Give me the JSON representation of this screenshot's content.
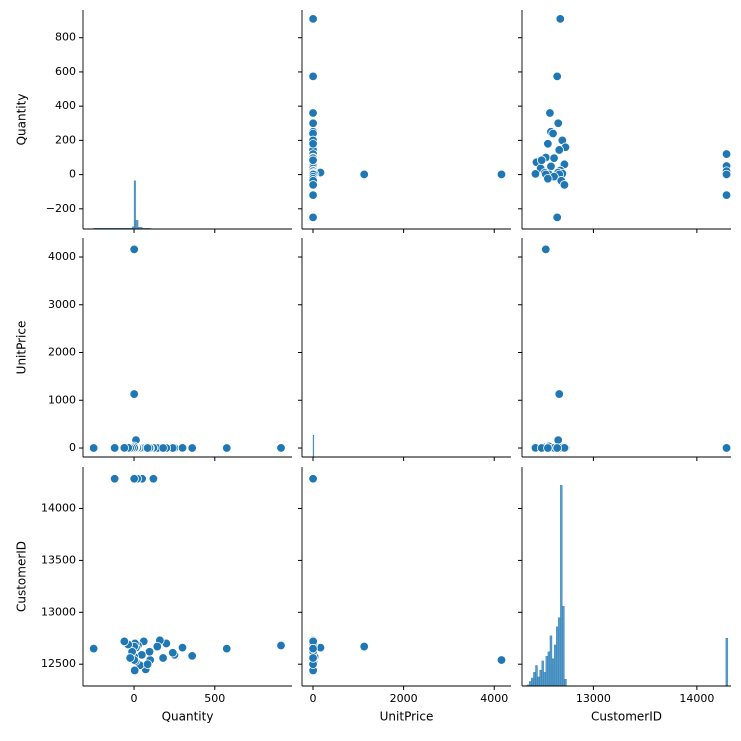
{
  "chart_data": {
    "type": "pairplot",
    "color": "#1f77b4",
    "variables": [
      {
        "name": "Quantity",
        "xlim": [
          -316,
          978
        ],
        "ylim": [
          -318,
          962
        ],
        "xticks": [
          0,
          500
        ],
        "yticks": [
          {
            "value": -200,
            "label": "−200"
          },
          0,
          200,
          400,
          600,
          800
        ],
        "hist": {
          "bins": [
            -250,
            -10,
            0,
            10,
            25,
            50,
            100,
            110,
            920
          ],
          "counts": [
            4,
            10,
            220,
            40,
            8,
            3,
            2,
            1
          ],
          "ylim": [
            0,
            1000
          ]
        }
      },
      {
        "name": "UnitPrice",
        "xlim": [
          -243,
          4370
        ],
        "ylim": [
          -188,
          4398
        ],
        "xticks": [
          0,
          2000,
          4000
        ],
        "yticks": [
          0,
          1000,
          2000,
          3000,
          4000
        ],
        "hist": {
          "bins": [
            0,
            20,
            4170
          ],
          "counts": [
            700,
            3
          ],
          "ylim": [
            0,
            7000
          ]
        }
      },
      {
        "name": "CustomerID",
        "xlim": [
          12310,
          14330
        ],
        "ylim": [
          12290,
          14400
        ],
        "xticks": [
          13000,
          14000
        ],
        "yticks": [
          12500,
          13000,
          13500,
          14000
        ],
        "hist": {
          "bins": [
            12340,
            12360,
            12380,
            12400,
            12420,
            12440,
            12460,
            12480,
            12500,
            12520,
            12540,
            12560,
            12580,
            12600,
            12620,
            12640,
            12660,
            12680,
            12700,
            12720,
            12740,
            14280,
            14300
          ],
          "counts": [
            2,
            5,
            20,
            35,
            60,
            90,
            40,
            70,
            110,
            60,
            130,
            150,
            220,
            120,
            180,
            260,
            300,
            880,
            350,
            30,
            0,
            210
          ],
          "ylim": [
            0,
            960
          ]
        }
      }
    ],
    "data": [
      [
        910,
        574,
        360,
        300,
        250,
        240,
        200,
        160,
        144,
        120,
        100,
        96,
        72,
        60,
        50,
        48,
        36,
        24,
        20,
        12,
        10,
        6,
        4,
        2,
        1,
        1,
        1,
        -12,
        -24,
        -36,
        -60,
        -120,
        -250,
        84,
        180
      ],
      [
        2.1,
        1.25,
        0.85,
        2.5,
        1.65,
        0.55,
        1.0,
        2.1,
        0.42,
        2.95,
        1.45,
        0.85,
        1.25,
        4.95,
        2.1,
        3.75,
        1.65,
        8.5,
        4.25,
        165,
        12.75,
        18,
        2.55,
        35,
        4160,
        1130,
        3.95,
        2.1,
        1.25,
        4.25,
        2.95,
        1.65,
        1.0,
        0.65,
        1.25
      ],
      [
        12680,
        12650,
        12580,
        12660,
        12590,
        12610,
        12700,
        12730,
        12670,
        14287,
        12540,
        12620,
        12450,
        12720,
        14287,
        12590,
        12490,
        12680,
        14287,
        12660,
        12530,
        12700,
        12440,
        12570,
        12540,
        12670,
        14287,
        12620,
        12560,
        12690,
        12720,
        14287,
        12650,
        12500,
        12560
      ]
    ]
  }
}
